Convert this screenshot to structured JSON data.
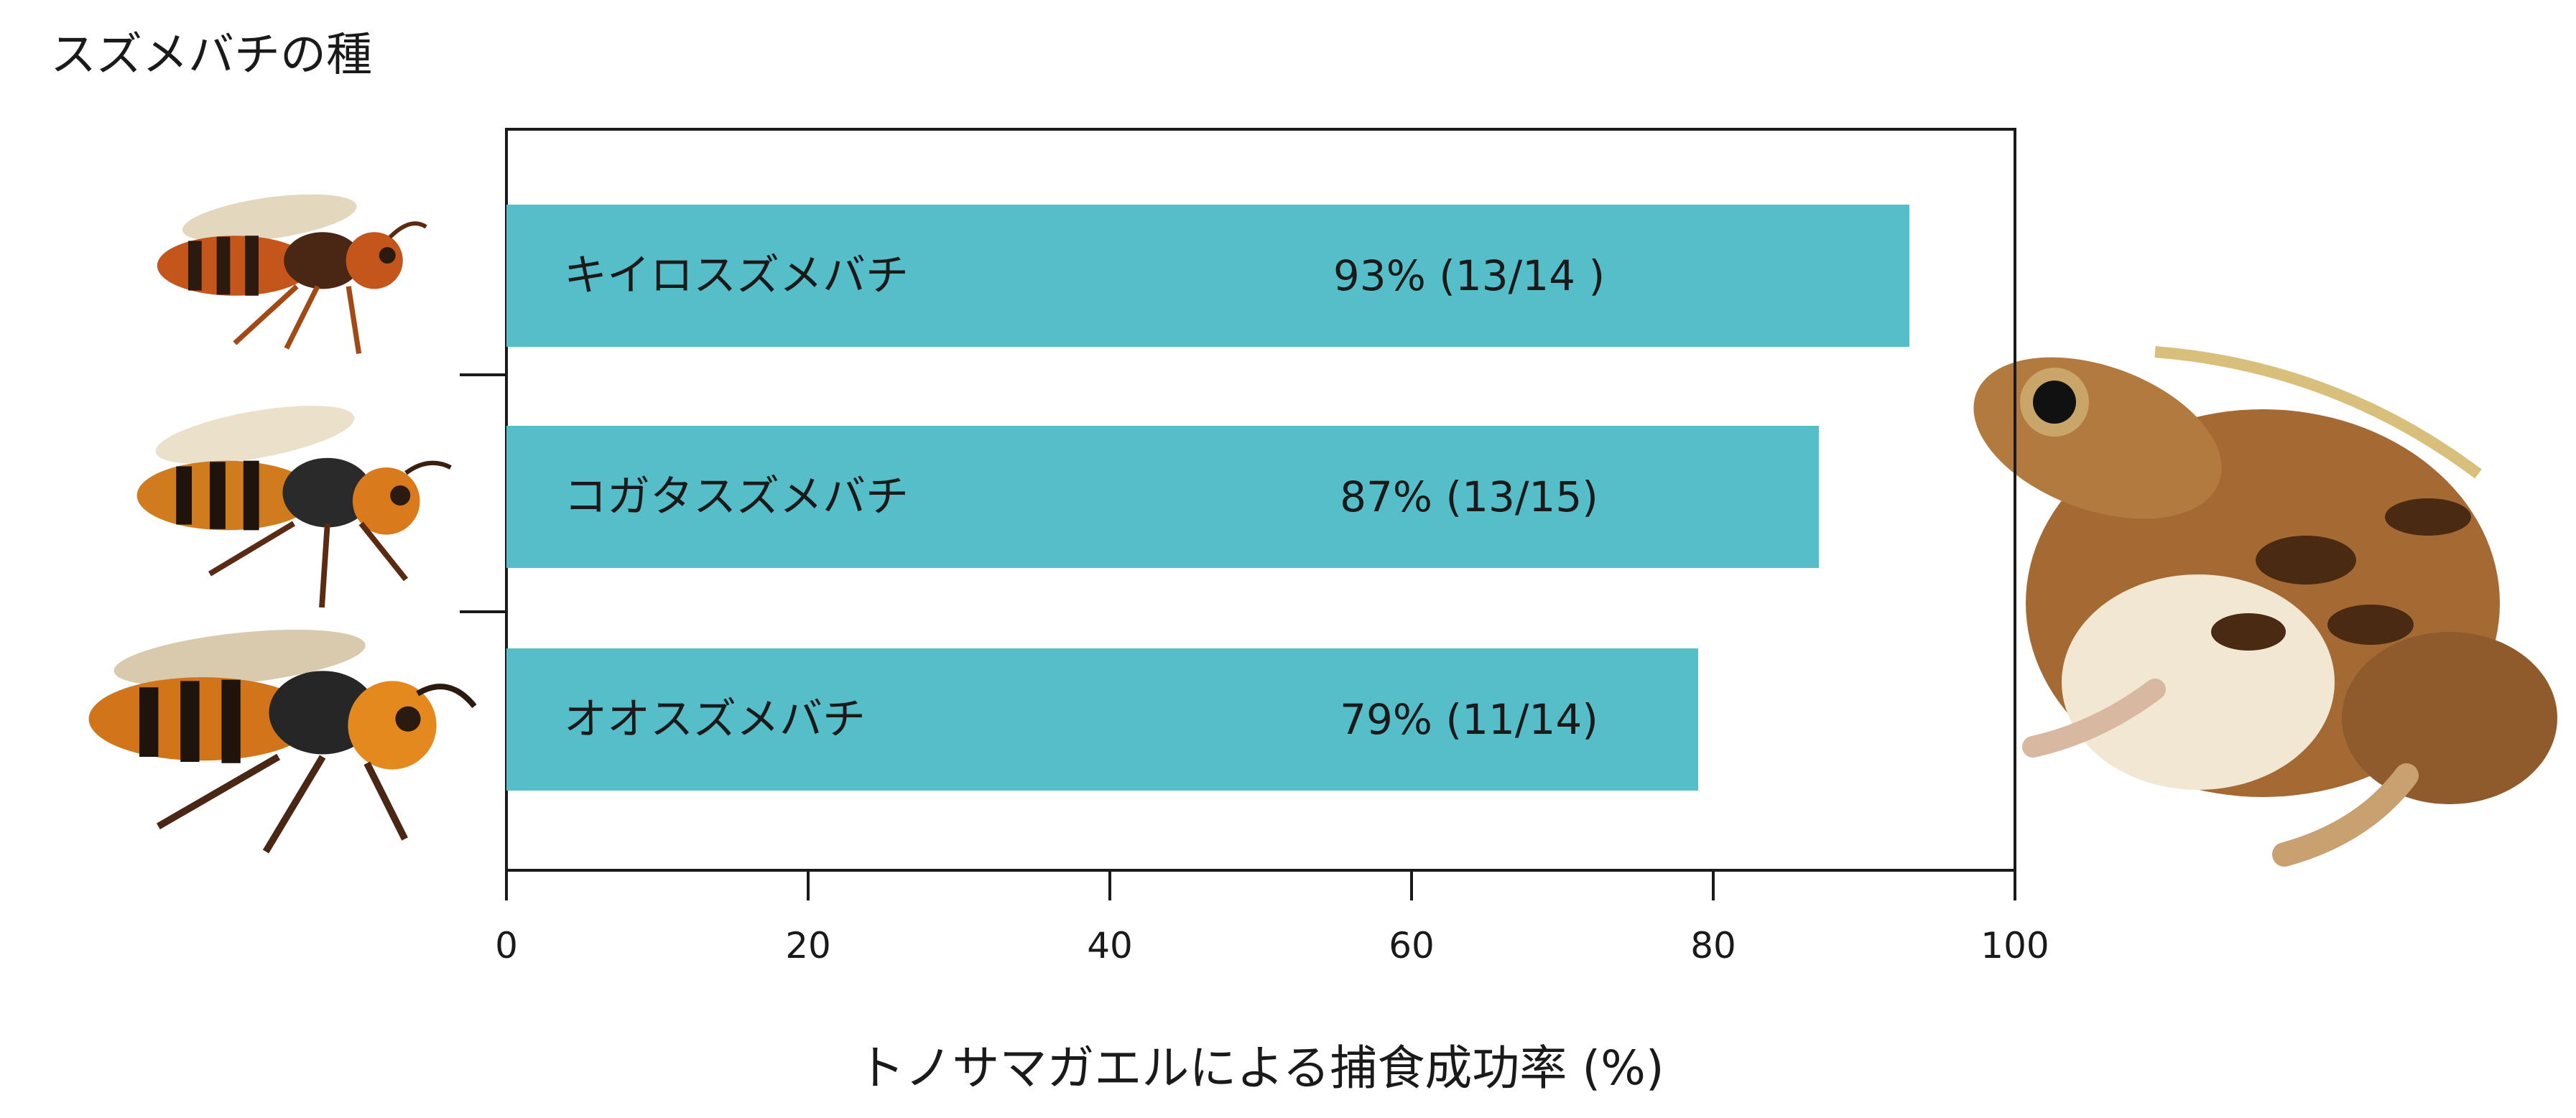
{
  "chart_data": {
    "type": "bar",
    "orientation": "horizontal",
    "y_title": "スズメバチの種",
    "xlabel": "トノサマガエルによる捕食成功率 (%)",
    "xlim": [
      0,
      100
    ],
    "x_ticks": [
      0,
      20,
      40,
      60,
      80,
      100
    ],
    "grid": false,
    "bar_color": "#55bec8",
    "categories": [
      "キイロスズメバチ",
      "コガタスズメバチ",
      "オオスズメバチ"
    ],
    "values": [
      93,
      87,
      79
    ],
    "data_labels": [
      "93% (13/14 )",
      "87% (13/15)",
      "79% (11/14)"
    ]
  },
  "illustrations": {
    "hornet_icon": "hornet-illustration",
    "frog_icon": "frog-illustration",
    "hornet_body_color": "#c4561c",
    "hornet_stripe_color": "#2a1a10",
    "frog_body_color": "#a56a34",
    "frog_belly_color": "#f1e7d2"
  }
}
